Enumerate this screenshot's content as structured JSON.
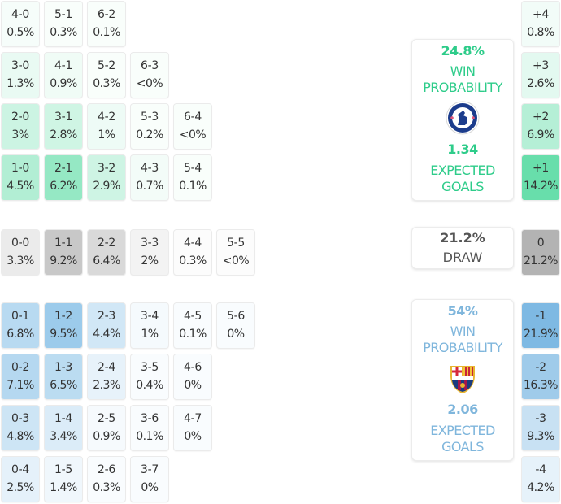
{
  "home_team": {
    "name": "Chelsea",
    "crest_icon": "chelsea-crest-icon",
    "win_probability": "24.8%",
    "win_label_1": "WIN",
    "win_label_2": "PROBABILITY",
    "expected_goals": "1.34",
    "xg_label_1": "EXPECTED",
    "xg_label_2": "GOALS",
    "color": "#2ecc8a"
  },
  "away_team": {
    "name": "Barcelona",
    "crest_icon": "barcelona-crest-icon",
    "win_probability": "54%",
    "win_label_1": "WIN",
    "win_label_2": "PROBABILITY",
    "expected_goals": "2.06",
    "xg_label_1": "EXPECTED",
    "xg_label_2": "GOALS",
    "color": "#7fb6dc"
  },
  "draw": {
    "probability": "21.2%",
    "label": "DRAW"
  },
  "home_win_rows": [
    [
      {
        "s": "4-0",
        "p": "0.5%"
      },
      {
        "s": "5-1",
        "p": "0.3%"
      },
      {
        "s": "6-2",
        "p": "0.1%"
      }
    ],
    [
      {
        "s": "3-0",
        "p": "1.3%"
      },
      {
        "s": "4-1",
        "p": "0.9%"
      },
      {
        "s": "5-2",
        "p": "0.3%"
      },
      {
        "s": "6-3",
        "p": "<0%"
      }
    ],
    [
      {
        "s": "2-0",
        "p": "3%"
      },
      {
        "s": "3-1",
        "p": "2.8%"
      },
      {
        "s": "4-2",
        "p": "1%"
      },
      {
        "s": "5-3",
        "p": "0.2%"
      },
      {
        "s": "6-4",
        "p": "<0%"
      }
    ],
    [
      {
        "s": "1-0",
        "p": "4.5%"
      },
      {
        "s": "2-1",
        "p": "6.2%"
      },
      {
        "s": "3-2",
        "p": "2.9%"
      },
      {
        "s": "4-3",
        "p": "0.7%"
      },
      {
        "s": "5-4",
        "p": "0.1%"
      }
    ]
  ],
  "draw_row": [
    {
      "s": "0-0",
      "p": "3.3%"
    },
    {
      "s": "1-1",
      "p": "9.2%"
    },
    {
      "s": "2-2",
      "p": "6.4%"
    },
    {
      "s": "3-3",
      "p": "2%"
    },
    {
      "s": "4-4",
      "p": "0.3%"
    },
    {
      "s": "5-5",
      "p": "<0%"
    }
  ],
  "away_win_rows": [
    [
      {
        "s": "0-1",
        "p": "6.8%"
      },
      {
        "s": "1-2",
        "p": "9.5%"
      },
      {
        "s": "2-3",
        "p": "4.4%"
      },
      {
        "s": "3-4",
        "p": "1%"
      },
      {
        "s": "4-5",
        "p": "0.1%"
      },
      {
        "s": "5-6",
        "p": "0%"
      }
    ],
    [
      {
        "s": "0-2",
        "p": "7.1%"
      },
      {
        "s": "1-3",
        "p": "6.5%"
      },
      {
        "s": "2-4",
        "p": "2.3%"
      },
      {
        "s": "3-5",
        "p": "0.4%"
      },
      {
        "s": "4-6",
        "p": "0%"
      }
    ],
    [
      {
        "s": "0-3",
        "p": "4.8%"
      },
      {
        "s": "1-4",
        "p": "3.4%"
      },
      {
        "s": "2-5",
        "p": "0.9%"
      },
      {
        "s": "3-6",
        "p": "0.1%"
      },
      {
        "s": "4-7",
        "p": "0%"
      }
    ],
    [
      {
        "s": "0-4",
        "p": "2.5%"
      },
      {
        "s": "1-5",
        "p": "1.4%"
      },
      {
        "s": "2-6",
        "p": "0.3%"
      },
      {
        "s": "3-7",
        "p": "0%"
      }
    ]
  ],
  "margins_home": [
    {
      "m": "+4",
      "p": "0.8%"
    },
    {
      "m": "+3",
      "p": "2.6%"
    },
    {
      "m": "+2",
      "p": "6.9%"
    },
    {
      "m": "+1",
      "p": "14.2%"
    }
  ],
  "margin_draw": {
    "m": "0",
    "p": "21.2%"
  },
  "margins_away": [
    {
      "m": "-1",
      "p": "21.9%"
    },
    {
      "m": "-2",
      "p": "16.3%"
    },
    {
      "m": "-3",
      "p": "9.3%"
    },
    {
      "m": "-4",
      "p": "4.2%"
    }
  ]
}
